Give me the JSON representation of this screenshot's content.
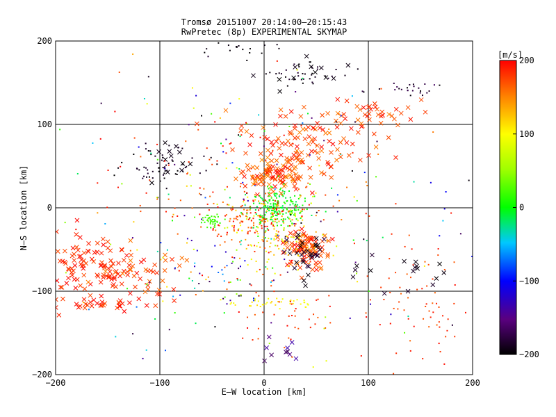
{
  "chart_data": {
    "type": "scatter",
    "title": "Tromsø 20151007 20:14:00–20:15:43",
    "subtitle": "RwPretec (8p) EXPERIMENTAL SKYMAP",
    "xlabel": "E–W location [km]",
    "ylabel": "N–S location [km]",
    "xlim": [
      -200,
      200
    ],
    "ylim": [
      -200,
      200
    ],
    "xticks": [
      -200,
      -100,
      0,
      100,
      200
    ],
    "yticks": [
      -200,
      -100,
      0,
      100,
      200
    ],
    "grid": true,
    "colorbar": {
      "label": "[m/s]",
      "range": [
        -200,
        200
      ],
      "ticks": [
        -200,
        -100,
        0,
        100,
        200
      ]
    },
    "markers": [
      "point",
      "x"
    ],
    "clusters": [
      {
        "x": 10,
        "y": 40,
        "sx": 18,
        "sy": 10,
        "n": 110,
        "v": [
          140,
          200
        ],
        "marker": "x"
      },
      {
        "x": 40,
        "y": 80,
        "sx": 30,
        "sy": 18,
        "n": 90,
        "v": [
          150,
          200
        ],
        "marker": "x"
      },
      {
        "x": 85,
        "y": 110,
        "sx": 30,
        "sy": 12,
        "n": 50,
        "v": [
          150,
          200
        ],
        "marker": "x"
      },
      {
        "x": 10,
        "y": 0,
        "sx": 15,
        "sy": 12,
        "n": 220,
        "v": [
          -20,
          20
        ],
        "marker": "point"
      },
      {
        "x": 5,
        "y": -10,
        "sx": 25,
        "sy": 15,
        "n": 120,
        "v": [
          60,
          200
        ],
        "marker": "point"
      },
      {
        "x": 40,
        "y": -50,
        "sx": 12,
        "sy": 12,
        "n": 90,
        "v": [
          150,
          200
        ],
        "marker": "x"
      },
      {
        "x": 40,
        "y": -55,
        "sx": 12,
        "sy": 10,
        "n": 30,
        "v": [
          -200,
          -170
        ],
        "marker": "x"
      },
      {
        "x": 15,
        "y": -40,
        "sx": 20,
        "sy": 15,
        "n": 60,
        "v": [
          80,
          140
        ],
        "marker": "point"
      },
      {
        "x": -20,
        "y": -20,
        "sx": 20,
        "sy": 15,
        "n": 80,
        "v": [
          150,
          200
        ],
        "marker": "point"
      },
      {
        "x": -50,
        "y": -15,
        "sx": 5,
        "sy": 4,
        "n": 40,
        "v": [
          10,
          30
        ],
        "marker": "point"
      },
      {
        "x": -165,
        "y": -70,
        "sx": 25,
        "sy": 20,
        "n": 110,
        "v": [
          170,
          200
        ],
        "marker": "x"
      },
      {
        "x": -120,
        "y": -80,
        "sx": 20,
        "sy": 15,
        "n": 40,
        "v": [
          150,
          200
        ],
        "marker": "x"
      },
      {
        "x": -160,
        "y": -115,
        "sx": 30,
        "sy": 6,
        "n": 30,
        "v": [
          170,
          200
        ],
        "marker": "x"
      },
      {
        "x": -95,
        "y": 50,
        "sx": 20,
        "sy": 12,
        "n": 60,
        "v": [
          -200,
          -180
        ],
        "marker": "point"
      },
      {
        "x": -90,
        "y": 60,
        "sx": 15,
        "sy": 10,
        "n": 12,
        "v": [
          -200,
          -190
        ],
        "marker": "x"
      },
      {
        "x": 40,
        "y": 160,
        "sx": 30,
        "sy": 8,
        "n": 40,
        "v": [
          -200,
          -180
        ],
        "marker": "point"
      },
      {
        "x": 40,
        "y": 160,
        "sx": 25,
        "sy": 8,
        "n": 12,
        "v": [
          -200,
          -190
        ],
        "marker": "x"
      },
      {
        "x": 130,
        "y": 140,
        "sx": 20,
        "sy": 5,
        "n": 25,
        "v": [
          -200,
          -160
        ],
        "marker": "point"
      },
      {
        "x": -20,
        "y": 190,
        "sx": 20,
        "sy": 6,
        "n": 20,
        "v": [
          -200,
          -190
        ],
        "marker": "point"
      },
      {
        "x": 10,
        "y": -115,
        "sx": 20,
        "sy": 3,
        "n": 40,
        "v": [
          90,
          120
        ],
        "marker": "point"
      },
      {
        "x": 30,
        "y": -130,
        "sx": 25,
        "sy": 20,
        "n": 40,
        "v": [
          160,
          200
        ],
        "marker": "point"
      },
      {
        "x": 150,
        "y": -120,
        "sx": 30,
        "sy": 40,
        "n": 70,
        "v": [
          160,
          200
        ],
        "marker": "point"
      },
      {
        "x": 20,
        "y": -175,
        "sx": 10,
        "sy": 8,
        "n": 10,
        "v": [
          -180,
          -130
        ],
        "marker": "x"
      },
      {
        "x": -50,
        "y": -75,
        "sx": 40,
        "sy": 20,
        "n": 60,
        "v": [
          -200,
          200
        ],
        "marker": "point"
      },
      {
        "x": 0,
        "y": 0,
        "sx": 120,
        "sy": 100,
        "n": 220,
        "v": [
          -200,
          200
        ],
        "marker": "point"
      },
      {
        "x": -20,
        "y": 20,
        "sx": 60,
        "sy": 40,
        "n": 90,
        "v": [
          150,
          200
        ],
        "marker": "point"
      },
      {
        "x": 120,
        "y": -80,
        "sx": 40,
        "sy": 15,
        "n": 20,
        "v": [
          -200,
          -180
        ],
        "marker": "x"
      }
    ]
  }
}
